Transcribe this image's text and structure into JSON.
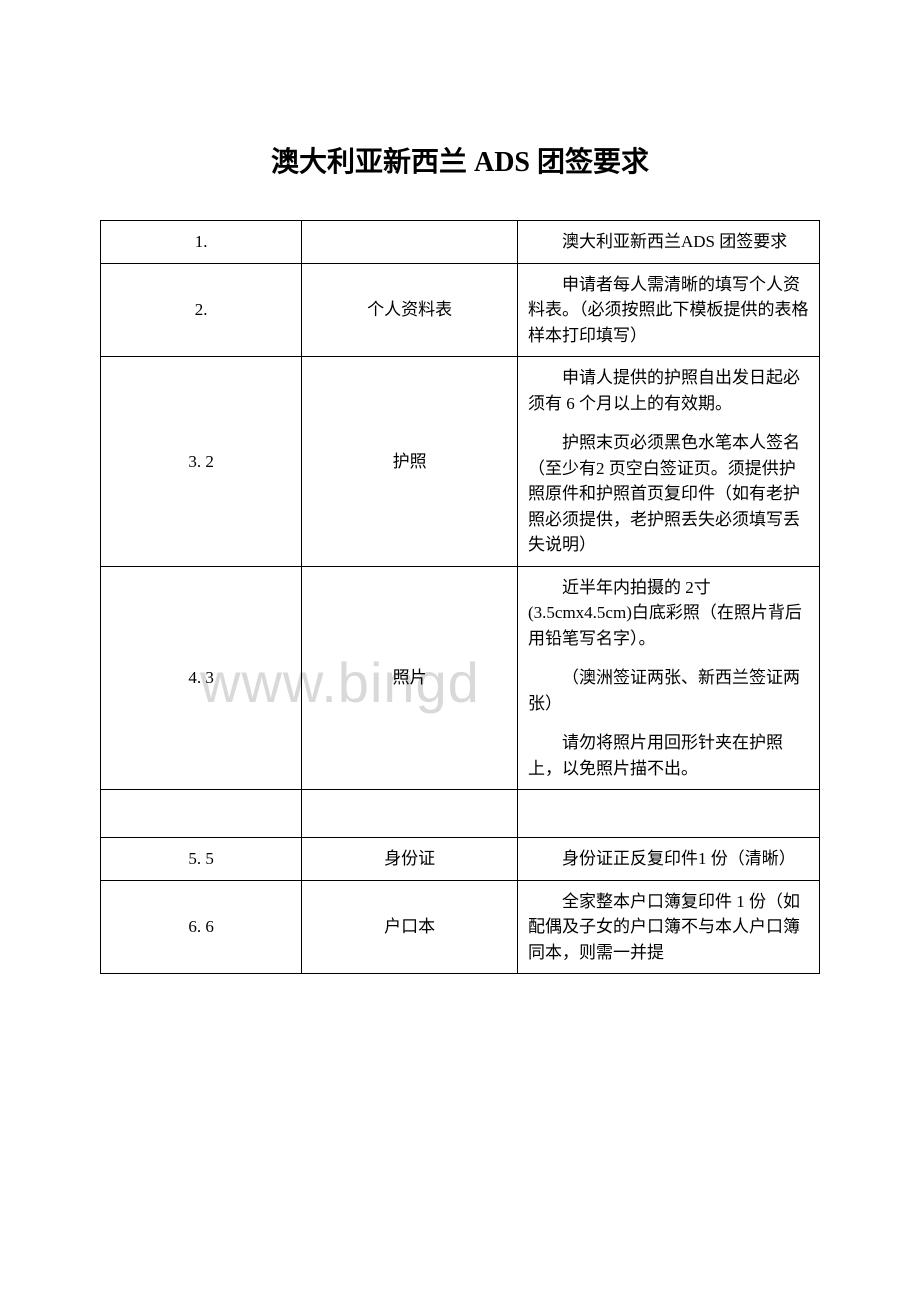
{
  "title": "澳大利亚新西兰 ADS 团签要求",
  "watermark": "www.bingd",
  "rows": [
    {
      "num": "1.",
      "label": "",
      "desc_paragraphs": [
        "澳大利亚新西兰ADS 团签要求"
      ]
    },
    {
      "num": "2.",
      "label": "个人资料表",
      "desc_paragraphs": [
        "申请者每人需清晰的填写个人资料表。（必须按照此下模板提供的表格样本打印填写）"
      ]
    },
    {
      "num": "3. 2",
      "label": "护照",
      "desc_paragraphs": [
        "申请人提供的护照自出发日起必须有 6 个月以上的有效期。",
        "护照末页必须黑色水笔本人签名（至少有2 页空白签证页。须提供护照原件和护照首页复印件（如有老护照必须提供，老护照丢失必须填写丢失说明）"
      ]
    },
    {
      "num": "4. 3",
      "label": "照片",
      "desc_paragraphs": [
        "近半年内拍摄的 2寸(3.5cmx4.5cm)白底彩照（在照片背后用铅笔写名字）。",
        "（澳洲签证两张、新西兰签证两张）",
        "请勿将照片用回形针夹在护照上，以免照片描不出。"
      ],
      "extra_bottom": true
    },
    {
      "num": "5. 5",
      "label": "身份证",
      "desc_paragraphs": [
        "身份证正反复印件1 份（清晰）"
      ]
    },
    {
      "num": "6. 6",
      "label": "户口本",
      "desc_paragraphs": [
        "全家整本户口簿复印件 1 份（如配偶及子女的户口簿不与本人户口簿同本，则需一并提"
      ]
    }
  ]
}
